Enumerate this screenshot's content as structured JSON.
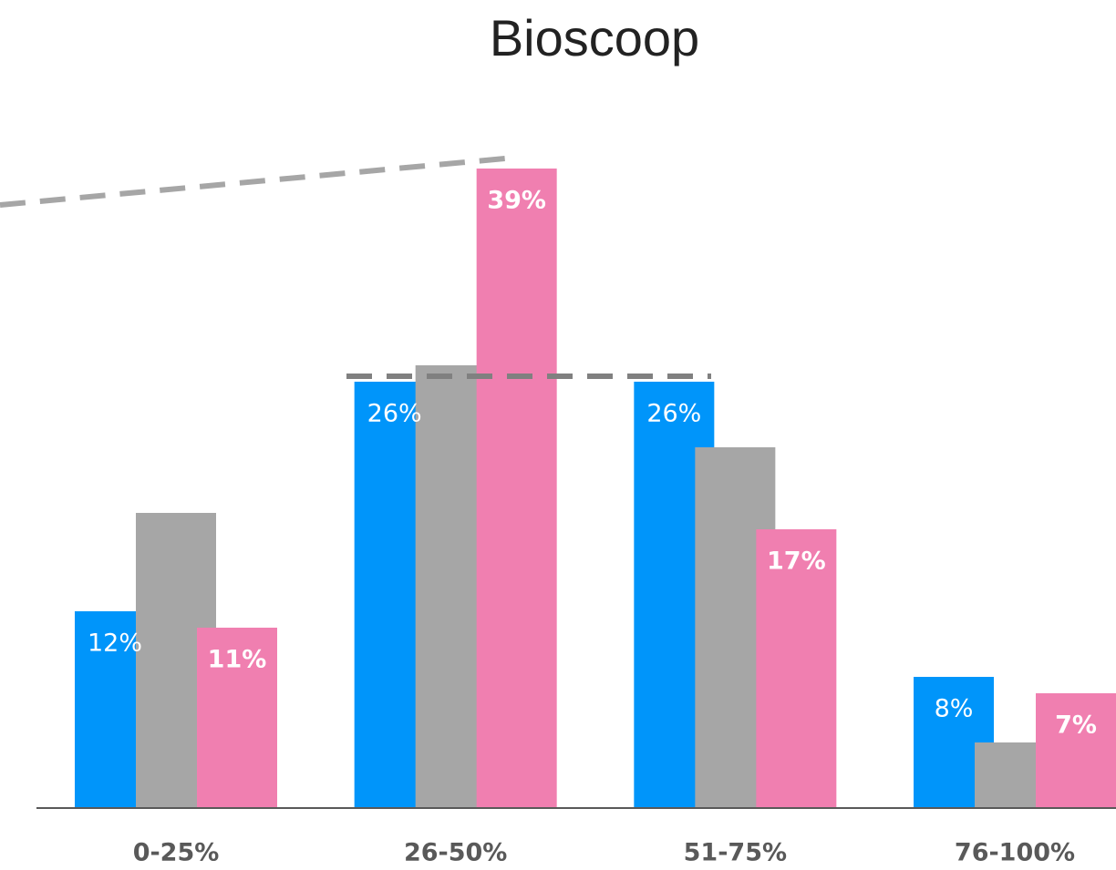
{
  "chart_data": {
    "type": "bar",
    "title": "Bioscoop",
    "categories": [
      "0-25%",
      "26-50%",
      "51-75%",
      "76-100%"
    ],
    "ylim": [
      0,
      40
    ],
    "series": [
      {
        "color": "#0095fa",
        "values": [
          12,
          26,
          26,
          8
        ],
        "value_labels": [
          "12%",
          "26%",
          "26%",
          "8%"
        ],
        "label_bold": false
      },
      {
        "color": "#a6a6a6",
        "values": [
          18,
          27,
          22,
          4
        ]
      },
      {
        "color": "#f07fb0",
        "values": [
          11,
          39,
          17,
          7
        ],
        "value_labels": [
          "11%",
          "39%",
          "17%",
          "7%"
        ],
        "label_bold": true
      }
    ]
  }
}
